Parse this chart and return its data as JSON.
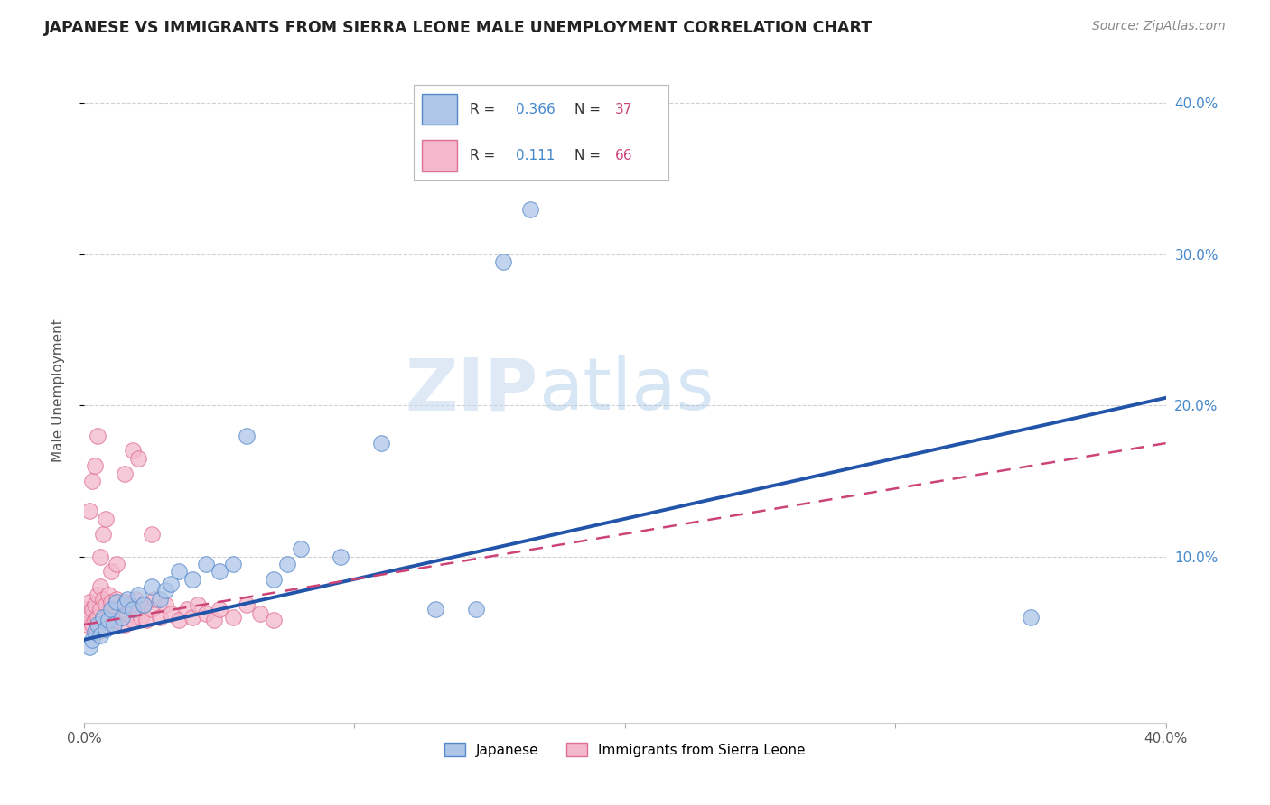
{
  "title": "JAPANESE VS IMMIGRANTS FROM SIERRA LEONE MALE UNEMPLOYMENT CORRELATION CHART",
  "source": "Source: ZipAtlas.com",
  "ylabel": "Male Unemployment",
  "xlim": [
    0.0,
    0.4
  ],
  "ylim": [
    -0.01,
    0.43
  ],
  "ytick_vals": [
    0.1,
    0.2,
    0.3,
    0.4
  ],
  "ytick_labels": [
    "10.0%",
    "20.0%",
    "30.0%",
    "40.0%"
  ],
  "xtick_vals": [
    0.0,
    0.1,
    0.2,
    0.3,
    0.4
  ],
  "xtick_labels": [
    "0.0%",
    "",
    "",
    "",
    "40.0%"
  ],
  "legend1_label": "Japanese",
  "legend2_label": "Immigrants from Sierra Leone",
  "r1": "0.366",
  "n1": "37",
  "r2": "0.111",
  "n2": "66",
  "color_japanese": "#aec6e8",
  "color_japanese_edge": "#5588cc",
  "color_japanese_line": "#2255aa",
  "color_sierra": "#f4b8cc",
  "color_sierra_edge": "#e07090",
  "color_sierra_line": "#cc4477",
  "watermark_zip": "ZIP",
  "watermark_atlas": "atlas",
  "jpn_x": [
    0.002,
    0.003,
    0.004,
    0.005,
    0.006,
    0.007,
    0.008,
    0.009,
    0.01,
    0.011,
    0.012,
    0.014,
    0.015,
    0.016,
    0.018,
    0.02,
    0.022,
    0.025,
    0.028,
    0.03,
    0.032,
    0.035,
    0.04,
    0.045,
    0.05,
    0.055,
    0.06,
    0.07,
    0.075,
    0.08,
    0.095,
    0.11,
    0.13,
    0.35,
    0.145,
    0.155,
    0.165
  ],
  "jpn_y": [
    0.04,
    0.045,
    0.05,
    0.055,
    0.048,
    0.06,
    0.052,
    0.058,
    0.065,
    0.055,
    0.07,
    0.06,
    0.068,
    0.072,
    0.065,
    0.075,
    0.068,
    0.08,
    0.072,
    0.078,
    0.082,
    0.09,
    0.085,
    0.095,
    0.09,
    0.095,
    0.18,
    0.085,
    0.095,
    0.105,
    0.1,
    0.175,
    0.065,
    0.06,
    0.065,
    0.295,
    0.33
  ],
  "sl_x": [
    0.001,
    0.001,
    0.002,
    0.002,
    0.003,
    0.003,
    0.004,
    0.004,
    0.005,
    0.005,
    0.005,
    0.006,
    0.006,
    0.006,
    0.007,
    0.007,
    0.008,
    0.008,
    0.009,
    0.009,
    0.01,
    0.01,
    0.011,
    0.012,
    0.012,
    0.013,
    0.014,
    0.015,
    0.015,
    0.016,
    0.017,
    0.018,
    0.019,
    0.02,
    0.021,
    0.022,
    0.023,
    0.025,
    0.026,
    0.028,
    0.03,
    0.032,
    0.035,
    0.038,
    0.04,
    0.042,
    0.045,
    0.048,
    0.05,
    0.055,
    0.06,
    0.065,
    0.07,
    0.002,
    0.003,
    0.004,
    0.005,
    0.006,
    0.007,
    0.008,
    0.01,
    0.012,
    0.015,
    0.018,
    0.02,
    0.025
  ],
  "sl_y": [
    0.055,
    0.065,
    0.06,
    0.07,
    0.055,
    0.065,
    0.058,
    0.068,
    0.05,
    0.06,
    0.075,
    0.055,
    0.065,
    0.08,
    0.058,
    0.072,
    0.055,
    0.068,
    0.06,
    0.075,
    0.055,
    0.07,
    0.062,
    0.058,
    0.072,
    0.065,
    0.06,
    0.055,
    0.07,
    0.062,
    0.068,
    0.058,
    0.072,
    0.065,
    0.06,
    0.068,
    0.058,
    0.065,
    0.072,
    0.06,
    0.068,
    0.062,
    0.058,
    0.065,
    0.06,
    0.068,
    0.062,
    0.058,
    0.065,
    0.06,
    0.068,
    0.062,
    0.058,
    0.13,
    0.15,
    0.16,
    0.18,
    0.1,
    0.115,
    0.125,
    0.09,
    0.095,
    0.155,
    0.17,
    0.165,
    0.115
  ],
  "jpn_line_x": [
    0.0,
    0.4
  ],
  "jpn_line_y": [
    0.045,
    0.205
  ],
  "sl_line_x": [
    0.0,
    0.4
  ],
  "sl_line_y": [
    0.055,
    0.175
  ]
}
